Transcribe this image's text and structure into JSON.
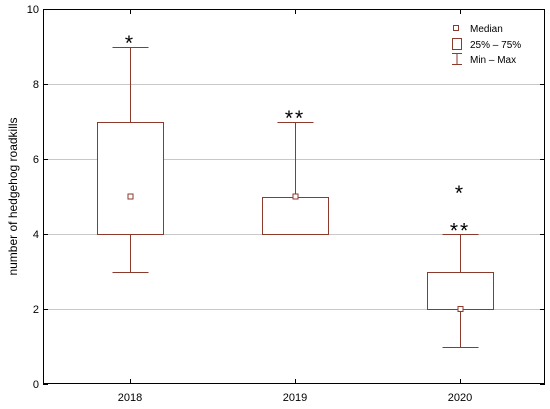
{
  "chart_data": {
    "type": "box",
    "ylabel": "number of hedgehog roadkills",
    "xlabel": "",
    "ylim": [
      0,
      10
    ],
    "yticks": [
      "0",
      "2",
      "4",
      "6",
      "8",
      "10"
    ],
    "grid": true,
    "legend_position": "top-right",
    "categories": [
      "2018",
      "2019",
      "2020"
    ],
    "boxes": [
      {
        "category": "2018",
        "min": 3,
        "q1": 4,
        "median": 5,
        "q3": 7,
        "max": 9
      },
      {
        "category": "2019",
        "min": 4,
        "q1": 4,
        "median": 5,
        "q3": 5,
        "max": 7
      },
      {
        "category": "2020",
        "min": 1,
        "q1": 2,
        "median": 2,
        "q3": 3,
        "max": 4
      }
    ],
    "annotations": [
      {
        "category": "2018",
        "text": "*",
        "y": 9.2
      },
      {
        "category": "2019",
        "text": "**",
        "y": 7.2
      },
      {
        "category": "2020",
        "text": "*",
        "y": 5.2
      },
      {
        "category": "2020",
        "text": "**",
        "y": 4.2
      }
    ],
    "legend": {
      "median": "Median",
      "box": "25% – 75%",
      "whisker": "Min – Max"
    },
    "colors": {
      "box": "#8b3a2b",
      "grid": "#c8c8c8",
      "frame": "#000000"
    }
  }
}
